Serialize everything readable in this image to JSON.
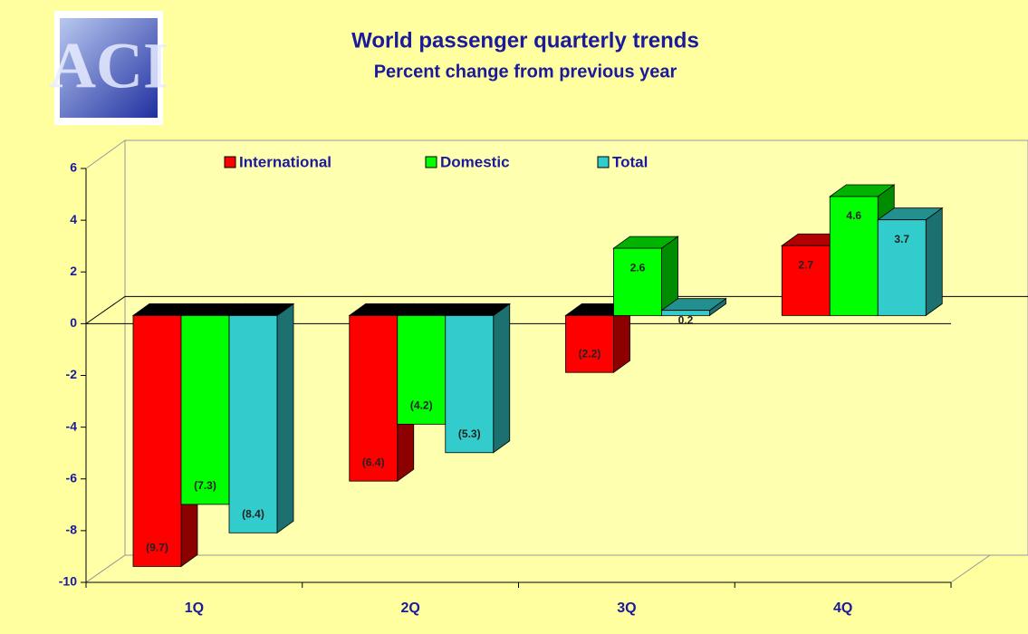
{
  "logo": "ACI",
  "chart_data": {
    "type": "bar3d",
    "title": "World passenger quarterly trends",
    "subtitle": "Percent change from previous year",
    "categories": [
      "1Q",
      "2Q",
      "3Q",
      "4Q"
    ],
    "series": [
      {
        "name": "International",
        "color": "#ff0000",
        "values": [
          -9.7,
          -6.4,
          -2.2,
          2.7
        ],
        "value_labels": [
          "(9.7)",
          "(6.4)",
          "(2.2)",
          "2.7"
        ]
      },
      {
        "name": "Domestic",
        "color": "#00ff00",
        "values": [
          -7.3,
          -4.2,
          2.6,
          4.6
        ],
        "value_labels": [
          "(7.3)",
          "(4.2)",
          "2.6",
          "4.6"
        ]
      },
      {
        "name": "Total",
        "color": "#33cccc",
        "values": [
          -8.4,
          -5.3,
          0.2,
          3.7
        ],
        "value_labels": [
          "(8.4)",
          "(5.3)",
          "0.2",
          "3.7"
        ]
      }
    ],
    "ylim": [
      -10,
      6
    ],
    "yticks": [
      -10,
      -8,
      -6,
      -4,
      -2,
      0,
      2,
      4,
      6
    ],
    "grid": false,
    "legend": "top"
  }
}
